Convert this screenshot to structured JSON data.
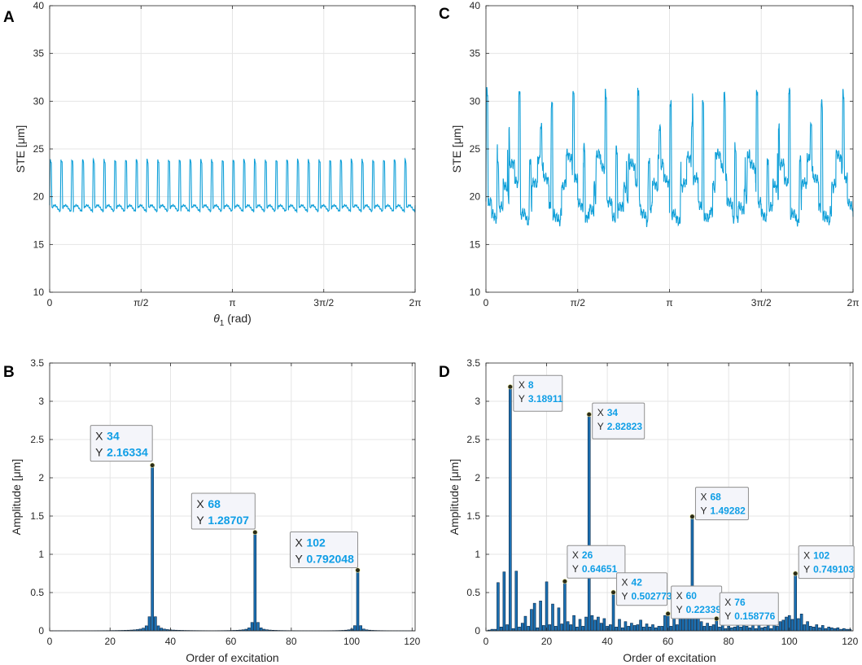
{
  "colors": {
    "line": "#0e9fd8",
    "bar": "#1b70b3",
    "bar_edge": "#0a2a4a",
    "grid": "#e5e5e5",
    "tip_value": "#0f9ee6"
  },
  "tip_labels": {
    "x": "X",
    "y": "Y"
  },
  "chart_data": [
    {
      "panel": "A",
      "type": "line",
      "xlabel_sym": "θ",
      "xlabel_sub": "1",
      "xlabel_rest": " (rad)",
      "ylabel": "STE [μm]",
      "xlim": [
        0,
        6.2832
      ],
      "ylim": [
        10,
        40
      ],
      "xticks": [
        0,
        1.5708,
        3.1416,
        4.7124,
        6.2832
      ],
      "xtick_labels": [
        "0",
        "π/2",
        "π",
        "3π/2",
        "2π"
      ],
      "yticks": [
        10,
        15,
        20,
        25,
        30,
        35,
        40
      ],
      "signal": {
        "mesh_periods": 34,
        "baseline": 19.1,
        "peak": 23.9,
        "ripple": 0.3
      }
    },
    {
      "panel": "B",
      "type": "bar",
      "xlabel": "Order of excitation",
      "ylabel": "Amplitude [μm]",
      "xlim": [
        0,
        121
      ],
      "ylim": [
        0,
        3.5
      ],
      "xticks": [
        0,
        20,
        40,
        60,
        80,
        100,
        120
      ],
      "yticks": [
        0,
        0.5,
        1,
        1.5,
        2,
        2.5,
        3,
        3.5
      ],
      "peaks": [
        {
          "x": 34,
          "y": 2.16334
        },
        {
          "x": 68,
          "y": 1.28707
        },
        {
          "x": 102,
          "y": 0.792048
        }
      ],
      "datatips": [
        {
          "x": "34",
          "y": "2.16334"
        },
        {
          "x": "68",
          "y": "1.28707"
        },
        {
          "x": "102",
          "y": "0.792048"
        }
      ]
    },
    {
      "panel": "C",
      "type": "line",
      "ylabel": "STE [μm]",
      "xlim": [
        0,
        6.2832
      ],
      "ylim": [
        10,
        40
      ],
      "xticks": [
        0,
        1.5708,
        3.1416,
        4.7124,
        6.2832
      ],
      "xtick_labels": [
        "0",
        "π/2",
        "π",
        "3π/2",
        "2π"
      ],
      "yticks": [
        10,
        15,
        20,
        25,
        30,
        35,
        40
      ],
      "signal": {
        "mesh_periods": 34,
        "cycle_periods": 8,
        "baseline": 20,
        "peak": 29,
        "ripple": 0.4
      }
    },
    {
      "panel": "D",
      "type": "bar",
      "xlabel": "Order of excitation",
      "ylabel": "Amplitude [μm]",
      "xlim": [
        0,
        121
      ],
      "ylim": [
        0,
        3.5
      ],
      "xticks": [
        0,
        20,
        40,
        60,
        80,
        100,
        120
      ],
      "yticks": [
        0,
        0.5,
        1,
        1.5,
        2,
        2.5,
        3,
        3.5
      ],
      "bars": [
        [
          1,
          0.01
        ],
        [
          2,
          0.02
        ],
        [
          3,
          0.02
        ],
        [
          4,
          0.63
        ],
        [
          5,
          0.05
        ],
        [
          6,
          0.77
        ],
        [
          7,
          0.08
        ],
        [
          8,
          3.18911
        ],
        [
          9,
          0.03
        ],
        [
          10,
          0.78
        ],
        [
          11,
          0.05
        ],
        [
          12,
          0.1
        ],
        [
          13,
          0.19
        ],
        [
          14,
          0.06
        ],
        [
          15,
          0.28
        ],
        [
          16,
          0.36
        ],
        [
          17,
          0.04
        ],
        [
          18,
          0.39
        ],
        [
          19,
          0.07
        ],
        [
          20,
          0.64
        ],
        [
          21,
          0.08
        ],
        [
          22,
          0.35
        ],
        [
          23,
          0.06
        ],
        [
          24,
          0.3
        ],
        [
          25,
          0.09
        ],
        [
          26,
          0.64651
        ],
        [
          27,
          0.12
        ],
        [
          28,
          0.08
        ],
        [
          29,
          0.2
        ],
        [
          30,
          0.05
        ],
        [
          31,
          0.15
        ],
        [
          32,
          0.06
        ],
        [
          33,
          0.18
        ],
        [
          34,
          2.82823
        ],
        [
          35,
          0.2
        ],
        [
          36,
          0.14
        ],
        [
          37,
          0.18
        ],
        [
          38,
          0.1
        ],
        [
          39,
          0.16
        ],
        [
          40,
          0.06
        ],
        [
          41,
          0.08
        ],
        [
          42,
          0.502773
        ],
        [
          43,
          0.05
        ],
        [
          44,
          0.15
        ],
        [
          45,
          0.04
        ],
        [
          46,
          0.12
        ],
        [
          47,
          0.06
        ],
        [
          48,
          0.1
        ],
        [
          49,
          0.07
        ],
        [
          50,
          0.08
        ],
        [
          51,
          0.14
        ],
        [
          52,
          0.05
        ],
        [
          53,
          0.09
        ],
        [
          54,
          0.05
        ],
        [
          55,
          0.08
        ],
        [
          56,
          0.04
        ],
        [
          57,
          0.06
        ],
        [
          58,
          0.06
        ],
        [
          59,
          0.2
        ],
        [
          60,
          0.22339
        ],
        [
          61,
          0.06
        ],
        [
          62,
          0.28
        ],
        [
          63,
          0.08
        ],
        [
          64,
          0.2
        ],
        [
          65,
          0.27
        ],
        [
          66,
          0.4
        ],
        [
          67,
          0.38
        ],
        [
          68,
          1.49282
        ],
        [
          69,
          0.4
        ],
        [
          70,
          0.24
        ],
        [
          71,
          0.12
        ],
        [
          72,
          0.06
        ],
        [
          73,
          0.1
        ],
        [
          74,
          0.06
        ],
        [
          75,
          0.08
        ],
        [
          76,
          0.158776
        ],
        [
          77,
          0.05
        ],
        [
          78,
          0.1
        ],
        [
          79,
          0.03
        ],
        [
          80,
          0.06
        ],
        [
          81,
          0.04
        ],
        [
          82,
          0.05
        ],
        [
          83,
          0.08
        ],
        [
          84,
          0.05
        ],
        [
          85,
          0.1
        ],
        [
          86,
          0.06
        ],
        [
          87,
          0.04
        ],
        [
          88,
          0.07
        ],
        [
          89,
          0.03
        ],
        [
          90,
          0.08
        ],
        [
          91,
          0.04
        ],
        [
          92,
          0.05
        ],
        [
          93,
          0.07
        ],
        [
          94,
          0.03
        ],
        [
          95,
          0.09
        ],
        [
          96,
          0.06
        ],
        [
          97,
          0.12
        ],
        [
          98,
          0.14
        ],
        [
          99,
          0.18
        ],
        [
          100,
          0.2
        ],
        [
          101,
          0.15
        ],
        [
          102,
          0.749103
        ],
        [
          103,
          0.16
        ],
        [
          104,
          0.22
        ],
        [
          105,
          0.08
        ],
        [
          106,
          0.12
        ],
        [
          107,
          0.06
        ],
        [
          108,
          0.05
        ],
        [
          109,
          0.08
        ],
        [
          110,
          0.04
        ],
        [
          111,
          0.07
        ],
        [
          112,
          0.03
        ],
        [
          113,
          0.05
        ],
        [
          114,
          0.04
        ],
        [
          115,
          0.03
        ],
        [
          116,
          0.04
        ],
        [
          117,
          0.02
        ],
        [
          118,
          0.03
        ],
        [
          119,
          0.02
        ],
        [
          120,
          0.02
        ]
      ],
      "datatips": [
        {
          "x": "8",
          "y": "3.18911"
        },
        {
          "x": "34",
          "y": "2.82823"
        },
        {
          "x": "26",
          "y": "0.64651"
        },
        {
          "x": "42",
          "y": "0.502773"
        },
        {
          "x": "68",
          "y": "1.49282"
        },
        {
          "x": "60",
          "y": "0.22339"
        },
        {
          "x": "76",
          "y": "0.158776"
        },
        {
          "x": "102",
          "y": "0.749103"
        }
      ]
    }
  ]
}
